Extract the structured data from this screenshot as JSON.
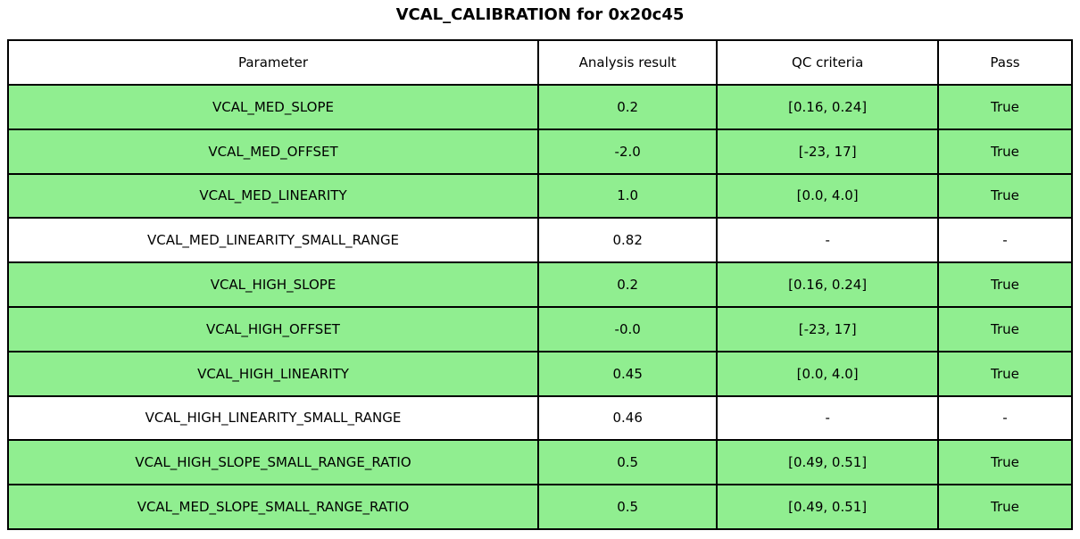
{
  "title": "VCAL_CALIBRATION for 0x20c45",
  "colors": {
    "pass_row_bg": "#90EE90",
    "neutral_row_bg": "#FFFFFF",
    "border": "#000000",
    "text": "#000000"
  },
  "table": {
    "columns": [
      "Parameter",
      "Analysis result",
      "QC criteria",
      "Pass"
    ],
    "rows": [
      {
        "parameter": "VCAL_MED_SLOPE",
        "analysis_result": "0.2",
        "qc_criteria": "[0.16, 0.24]",
        "pass": "True",
        "highlighted": true
      },
      {
        "parameter": "VCAL_MED_OFFSET",
        "analysis_result": "-2.0",
        "qc_criteria": "[-23, 17]",
        "pass": "True",
        "highlighted": true
      },
      {
        "parameter": "VCAL_MED_LINEARITY",
        "analysis_result": "1.0",
        "qc_criteria": "[0.0, 4.0]",
        "pass": "True",
        "highlighted": true
      },
      {
        "parameter": "VCAL_MED_LINEARITY_SMALL_RANGE",
        "analysis_result": "0.82",
        "qc_criteria": "-",
        "pass": "-",
        "highlighted": false
      },
      {
        "parameter": "VCAL_HIGH_SLOPE",
        "analysis_result": "0.2",
        "qc_criteria": "[0.16, 0.24]",
        "pass": "True",
        "highlighted": true
      },
      {
        "parameter": "VCAL_HIGH_OFFSET",
        "analysis_result": "-0.0",
        "qc_criteria": "[-23, 17]",
        "pass": "True",
        "highlighted": true
      },
      {
        "parameter": "VCAL_HIGH_LINEARITY",
        "analysis_result": "0.45",
        "qc_criteria": "[0.0, 4.0]",
        "pass": "True",
        "highlighted": true
      },
      {
        "parameter": "VCAL_HIGH_LINEARITY_SMALL_RANGE",
        "analysis_result": "0.46",
        "qc_criteria": "-",
        "pass": "-",
        "highlighted": false
      },
      {
        "parameter": "VCAL_HIGH_SLOPE_SMALL_RANGE_RATIO",
        "analysis_result": "0.5",
        "qc_criteria": "[0.49, 0.51]",
        "pass": "True",
        "highlighted": true
      },
      {
        "parameter": "VCAL_MED_SLOPE_SMALL_RANGE_RATIO",
        "analysis_result": "0.5",
        "qc_criteria": "[0.49, 0.51]",
        "pass": "True",
        "highlighted": true
      }
    ]
  },
  "chart_data": {
    "type": "table",
    "title": "VCAL_CALIBRATION for 0x20c45",
    "columns": [
      "Parameter",
      "Analysis result",
      "QC criteria",
      "Pass"
    ],
    "rows": [
      [
        "VCAL_MED_SLOPE",
        "0.2",
        "[0.16, 0.24]",
        "True"
      ],
      [
        "VCAL_MED_OFFSET",
        "-2.0",
        "[-23, 17]",
        "True"
      ],
      [
        "VCAL_MED_LINEARITY",
        "1.0",
        "[0.0, 4.0]",
        "True"
      ],
      [
        "VCAL_MED_LINEARITY_SMALL_RANGE",
        "0.82",
        "-",
        "-"
      ],
      [
        "VCAL_HIGH_SLOPE",
        "0.2",
        "[0.16, 0.24]",
        "True"
      ],
      [
        "VCAL_HIGH_OFFSET",
        "-0.0",
        "[-23, 17]",
        "True"
      ],
      [
        "VCAL_HIGH_LINEARITY",
        "0.45",
        "[0.0, 4.0]",
        "True"
      ],
      [
        "VCAL_HIGH_LINEARITY_SMALL_RANGE",
        "0.46",
        "-",
        "-"
      ],
      [
        "VCAL_HIGH_SLOPE_SMALL_RANGE_RATIO",
        "0.5",
        "[0.49, 0.51]",
        "True"
      ],
      [
        "VCAL_MED_SLOPE_SMALL_RANGE_RATIO",
        "0.5",
        "[0.49, 0.51]",
        "True"
      ]
    ],
    "row_pass_highlight": [
      true,
      true,
      true,
      false,
      true,
      true,
      true,
      false,
      true,
      true
    ],
    "legend_position": "none",
    "grid": true
  }
}
